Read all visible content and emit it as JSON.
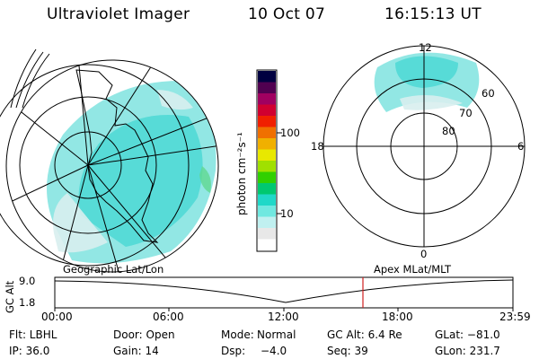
{
  "header": {
    "title": "Ultraviolet Imager",
    "date": "10 Oct 07",
    "time": "16:15:13 UT"
  },
  "colorbar": {
    "unit_label": "photon cm⁻²s⁻¹",
    "ticks": [
      "100",
      "10"
    ],
    "colors": [
      "#000040",
      "#500050",
      "#a00060",
      "#d00030",
      "#f02000",
      "#f07000",
      "#f0b000",
      "#e8e800",
      "#a0e000",
      "#30d000",
      "#00c870",
      "#20d8c8",
      "#70e8e0",
      "#c0f0f0",
      "#e8e8e8",
      "#ffffff"
    ]
  },
  "polar_plot": {
    "labels": {
      "top": "12",
      "bottom": "0",
      "left": "18",
      "right": "6",
      "lat60": "60",
      "lat70": "70",
      "lat80": "80"
    }
  },
  "timeline": {
    "left_title": "Geographic Lat/Lon",
    "right_title": "Apex MLat/MLT",
    "axis_label": "GC Alt",
    "y_ticks": [
      "9.0",
      "1.8"
    ],
    "x_ticks": [
      "00:00",
      "06:00",
      "12:00",
      "18:00",
      "23:59"
    ],
    "marker_color": "#d02020"
  },
  "info": {
    "filter": "Flt: LBHL",
    "door": "Door: Open",
    "mode_label": "Mode:",
    "mode_value": "Normal",
    "gc_alt": "GC Alt: 6.4 Re",
    "glat": "GLat: −81.0",
    "ip": "IP: 36.0",
    "gain": "Gain: 14",
    "dsp_label": "Dsp:",
    "dsp_value": "−4.0",
    "seq": "Seq: 39",
    "glon": "GLon: 231.7"
  }
}
